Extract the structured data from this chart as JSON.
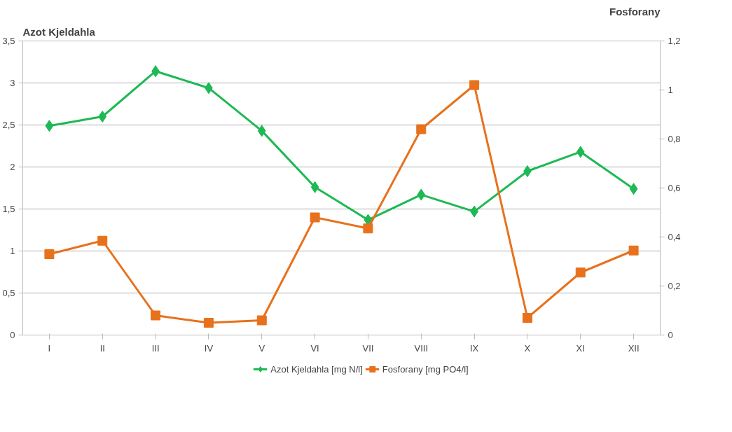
{
  "chart_data": {
    "type": "line",
    "ylabel": "Azot Kjeldahla",
    "y2label": "Fosforany",
    "categories": [
      "I",
      "II",
      "III",
      "IV",
      "V",
      "VI",
      "VII",
      "VIII",
      "IX",
      "X",
      "XI",
      "XII"
    ],
    "series": [
      {
        "name": "Azot Kjeldahla [mg N/l]",
        "color": "#1db954",
        "marker": "diamond",
        "values": [
          2.49,
          2.6,
          3.14,
          2.94,
          2.43,
          1.76,
          1.37,
          1.67,
          1.47,
          1.95,
          2.18,
          1.74
        ]
      },
      {
        "name": "Fosforany [mg PO4/l]",
        "color": "#e8711c",
        "marker": "square",
        "axis": "y2",
        "values": [
          0.33,
          0.385,
          0.08,
          0.05,
          0.06,
          0.48,
          0.435,
          0.84,
          1.02,
          0.07,
          0.255,
          0.345
        ]
      }
    ],
    "ylim": [
      0,
      3.5
    ],
    "yticks": [
      0,
      {
        "value": 0.5,
        "label": "0,5"
      },
      1,
      {
        "value": 1.5,
        "label": "1,5"
      },
      2,
      {
        "value": 2.5,
        "label": "2,5"
      },
      3,
      {
        "value": 3.5,
        "label": "3,5"
      }
    ],
    "y2lim": [
      0,
      1.2
    ],
    "y2ticks": [
      0,
      {
        "value": 0.2,
        "label": "0,2"
      },
      {
        "value": 0.4,
        "label": "0,4"
      },
      {
        "value": 0.6,
        "label": "0,6"
      },
      {
        "value": 0.8,
        "label": "0,8"
      },
      1,
      {
        "value": 1.2,
        "label": "1,2"
      }
    ],
    "grid": "y",
    "legend": "bottom",
    "line_style": "solid"
  }
}
